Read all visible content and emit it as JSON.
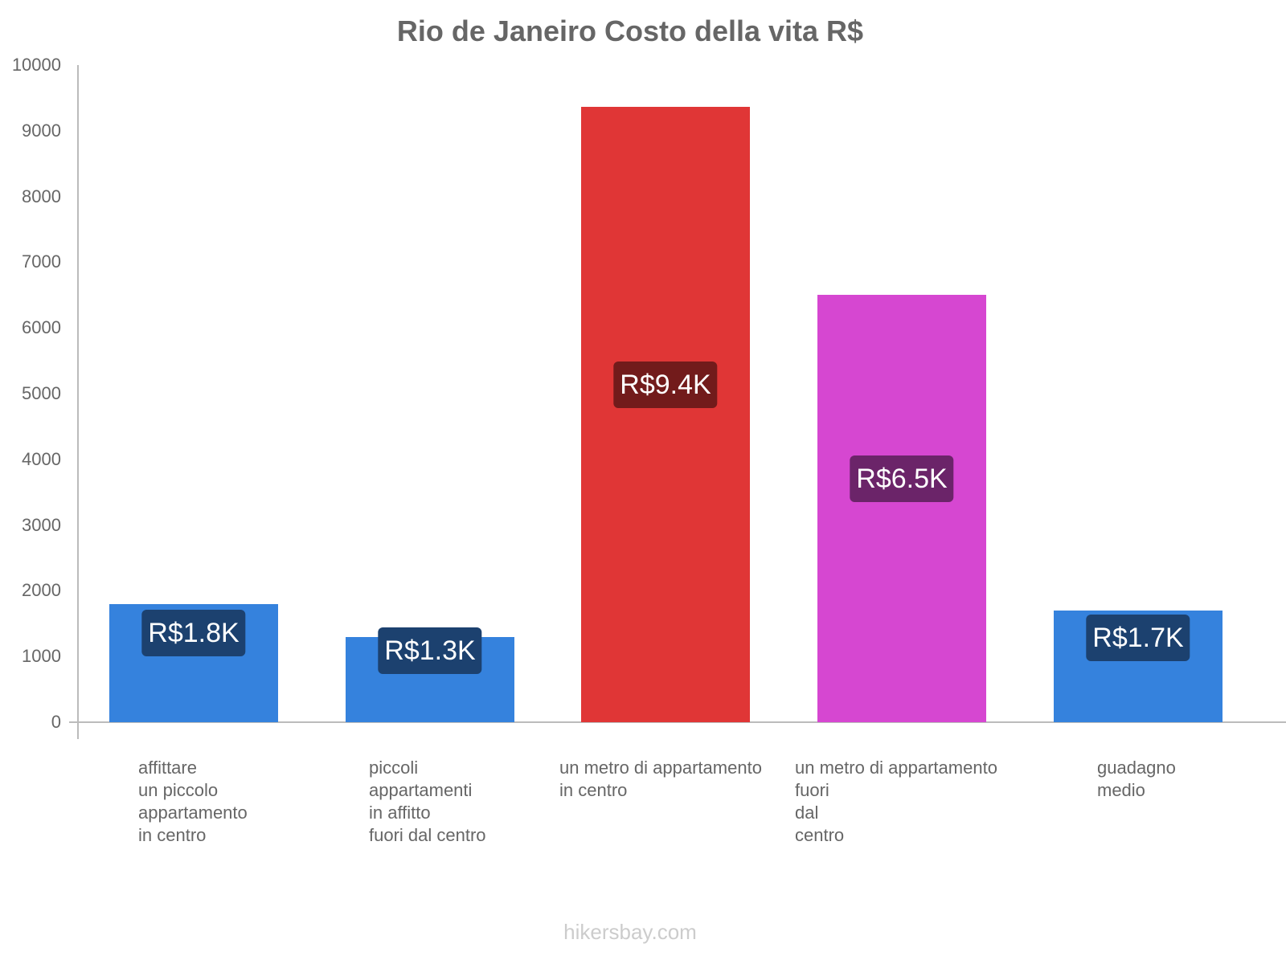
{
  "chart_data": {
    "type": "bar",
    "title": "Rio de Janeiro Costo della vita R$",
    "xlabel": "",
    "ylabel": "",
    "ylim": [
      0,
      10000
    ],
    "yticks": [
      "0",
      "1000",
      "2000",
      "3000",
      "4000",
      "5000",
      "6000",
      "7000",
      "8000",
      "9000",
      "10000"
    ],
    "grid": false,
    "legend": null,
    "categories": [
      "affittare\nun piccolo\nappartamento\nin centro",
      "piccoli\nappartamenti\nin affitto\nfuori dal centro",
      "un metro di appartamento\nin centro",
      "un metro di appartamento\nfuori\ndal\ncentro",
      "guadagno\nmedio"
    ],
    "values": [
      1800,
      1300,
      9370,
      6500,
      1700
    ],
    "value_labels": [
      "R$1.8K",
      "R$1.3K",
      "R$9.4K",
      "R$6.5K",
      "R$1.7K"
    ],
    "colors": [
      "#3582dd",
      "#3582dd",
      "#e03636",
      "#d647d1",
      "#3582dd"
    ],
    "label_box_colors": [
      "#1c416f",
      "#1c416f",
      "#721b1b",
      "#6b2469",
      "#1c416f"
    ]
  },
  "footer": {
    "watermark": "hikersbay.com"
  }
}
